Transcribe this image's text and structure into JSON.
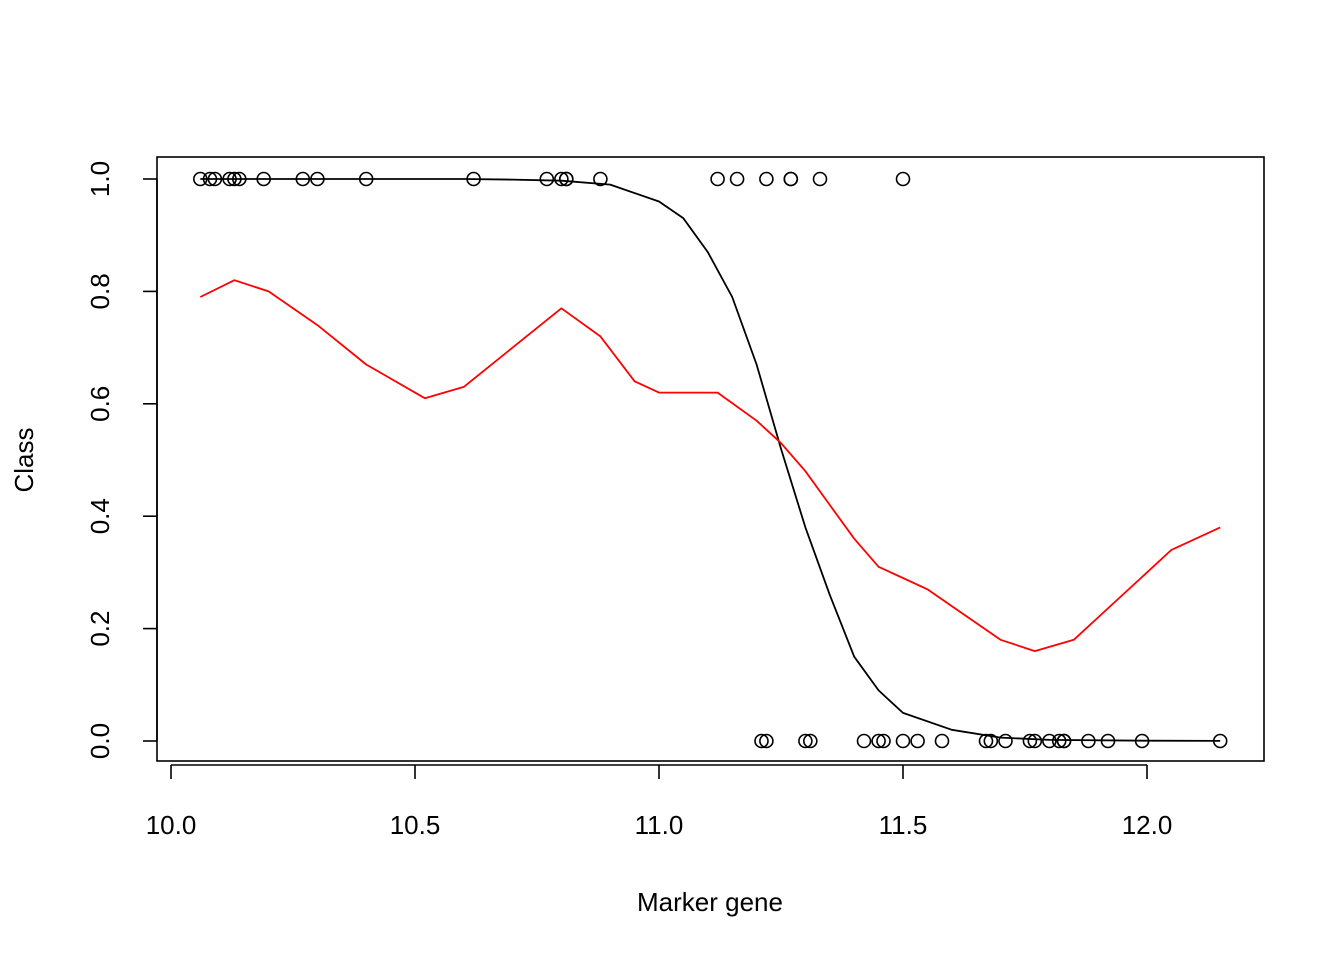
{
  "chart_data": {
    "type": "scatter",
    "title": "",
    "xlabel": "Marker gene",
    "ylabel": "Class",
    "xlim": [
      10.0,
      12.2
    ],
    "ylim": [
      0.0,
      1.0
    ],
    "x_ticks": [
      10.0,
      10.5,
      11.0,
      11.5,
      12.0
    ],
    "x_tick_labels": [
      "10.0",
      "10.5",
      "11.0",
      "11.5",
      "12.0"
    ],
    "y_ticks": [
      0.0,
      0.2,
      0.4,
      0.6,
      0.8,
      1.0
    ],
    "y_tick_labels": [
      "0.0",
      "0.2",
      "0.4",
      "0.6",
      "0.8",
      "1.0"
    ],
    "grid": false,
    "legend": "none",
    "colors": {
      "points": "#000000",
      "logistic_fit": "#000000",
      "smooth_fit": "#ff0000"
    },
    "points": [
      {
        "x": 10.06,
        "y": 1
      },
      {
        "x": 10.08,
        "y": 1
      },
      {
        "x": 10.09,
        "y": 1
      },
      {
        "x": 10.12,
        "y": 1
      },
      {
        "x": 10.13,
        "y": 1
      },
      {
        "x": 10.14,
        "y": 1
      },
      {
        "x": 10.19,
        "y": 1
      },
      {
        "x": 10.27,
        "y": 1
      },
      {
        "x": 10.3,
        "y": 1
      },
      {
        "x": 10.4,
        "y": 1
      },
      {
        "x": 10.62,
        "y": 1
      },
      {
        "x": 10.77,
        "y": 1
      },
      {
        "x": 10.8,
        "y": 1
      },
      {
        "x": 10.81,
        "y": 1
      },
      {
        "x": 10.81,
        "y": 1
      },
      {
        "x": 10.88,
        "y": 1
      },
      {
        "x": 11.12,
        "y": 1
      },
      {
        "x": 11.16,
        "y": 1
      },
      {
        "x": 11.22,
        "y": 1
      },
      {
        "x": 11.27,
        "y": 1
      },
      {
        "x": 11.27,
        "y": 1
      },
      {
        "x": 11.33,
        "y": 1
      },
      {
        "x": 11.5,
        "y": 1
      },
      {
        "x": 11.21,
        "y": 0
      },
      {
        "x": 11.22,
        "y": 0
      },
      {
        "x": 11.3,
        "y": 0
      },
      {
        "x": 11.31,
        "y": 0
      },
      {
        "x": 11.42,
        "y": 0
      },
      {
        "x": 11.45,
        "y": 0
      },
      {
        "x": 11.46,
        "y": 0
      },
      {
        "x": 11.5,
        "y": 0
      },
      {
        "x": 11.53,
        "y": 0
      },
      {
        "x": 11.58,
        "y": 0
      },
      {
        "x": 11.67,
        "y": 0
      },
      {
        "x": 11.68,
        "y": 0
      },
      {
        "x": 11.71,
        "y": 0
      },
      {
        "x": 11.76,
        "y": 0
      },
      {
        "x": 11.77,
        "y": 0
      },
      {
        "x": 11.8,
        "y": 0
      },
      {
        "x": 11.82,
        "y": 0
      },
      {
        "x": 11.83,
        "y": 0
      },
      {
        "x": 11.83,
        "y": 0
      },
      {
        "x": 11.88,
        "y": 0
      },
      {
        "x": 11.92,
        "y": 0
      },
      {
        "x": 11.99,
        "y": 0
      },
      {
        "x": 12.15,
        "y": 0
      }
    ],
    "series": [
      {
        "type": "line",
        "x": [
          10.06,
          10.4,
          10.6,
          10.7,
          10.8,
          10.9,
          11.0,
          11.05,
          11.1,
          11.15,
          11.2,
          11.25,
          11.3,
          11.35,
          11.4,
          11.45,
          11.5,
          11.6,
          11.7,
          11.8,
          12.0,
          12.15
        ],
        "y": [
          1.0,
          1.0,
          1.0,
          0.999,
          0.997,
          0.99,
          0.96,
          0.93,
          0.87,
          0.79,
          0.67,
          0.52,
          0.38,
          0.26,
          0.15,
          0.09,
          0.05,
          0.02,
          0.006,
          0.002,
          0.0005,
          0.0002
        ]
      },
      {
        "type": "line",
        "x": [
          10.06,
          10.13,
          10.2,
          10.3,
          10.4,
          10.52,
          10.6,
          10.7,
          10.8,
          10.88,
          10.95,
          11.0,
          11.05,
          11.12,
          11.2,
          11.25,
          11.3,
          11.35,
          11.4,
          11.45,
          11.5,
          11.55,
          11.6,
          11.7,
          11.77,
          11.85,
          11.95,
          12.05,
          12.15
        ],
        "y": [
          0.79,
          0.82,
          0.8,
          0.74,
          0.67,
          0.61,
          0.63,
          0.7,
          0.77,
          0.72,
          0.64,
          0.62,
          0.62,
          0.62,
          0.57,
          0.53,
          0.48,
          0.42,
          0.36,
          0.31,
          0.29,
          0.27,
          0.24,
          0.18,
          0.16,
          0.18,
          0.26,
          0.34,
          0.38
        ]
      }
    ]
  }
}
